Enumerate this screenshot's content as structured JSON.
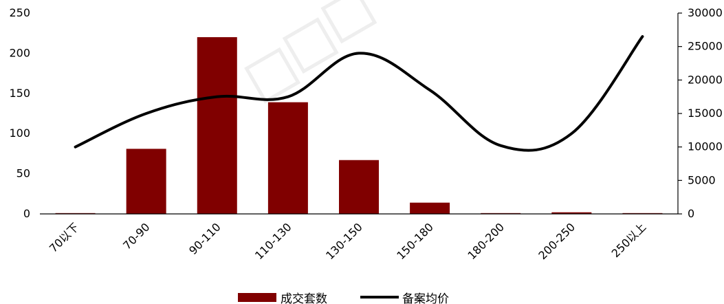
{
  "chart_data": {
    "type": "bar",
    "categories": [
      "70以下",
      "70-90",
      "90-110",
      "110-130",
      "130-150",
      "150-180",
      "180-200",
      "200-250",
      "250以上"
    ],
    "series": [
      {
        "name": "成交套数",
        "type": "bar",
        "axis": "left",
        "values": [
          1,
          81,
          220,
          139,
          67,
          14,
          1,
          2,
          1
        ]
      },
      {
        "name": "备案均价",
        "type": "line",
        "axis": "right",
        "values": [
          10000,
          15000,
          17500,
          17500,
          24000,
          18500,
          10200,
          12000,
          26500
        ]
      }
    ],
    "y_left": {
      "ticks": [
        "0",
        "50",
        "100",
        "150",
        "200",
        "250"
      ],
      "ylim": [
        0,
        250
      ]
    },
    "y_right": {
      "ticks": [
        "0",
        "5000",
        "10000",
        "15000",
        "20000",
        "25000",
        "30000"
      ],
      "ylim": [
        0,
        30000
      ]
    },
    "grid": false,
    "legend_position": "bottom",
    "colors": {
      "bar": "#800000",
      "line": "#000000"
    }
  }
}
